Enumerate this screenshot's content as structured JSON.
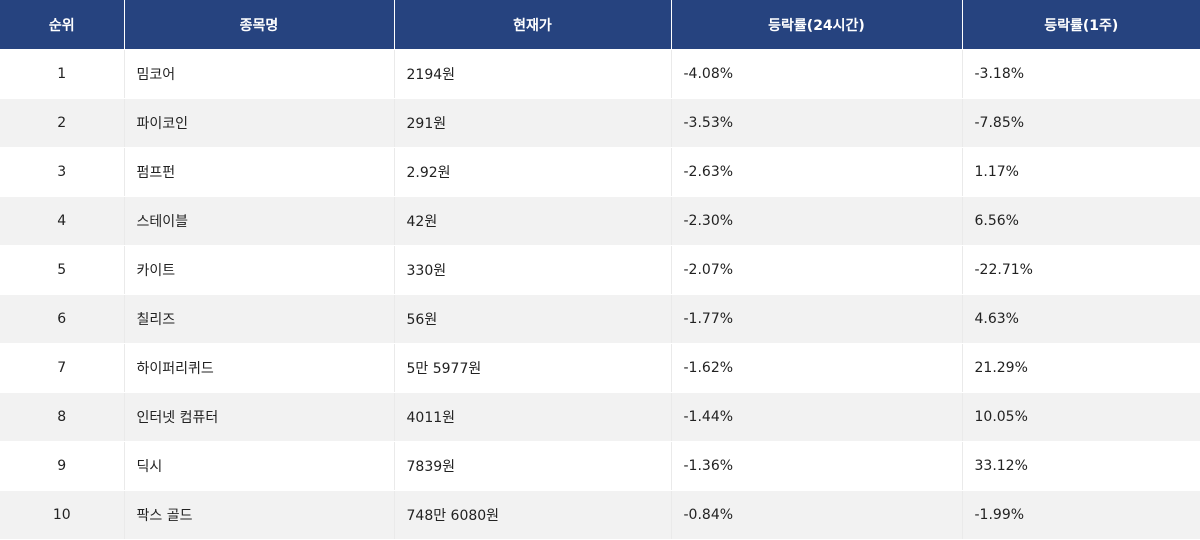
{
  "table": {
    "headers": [
      "순위",
      "종목명",
      "현재가",
      "등락률(24시간)",
      "등락률(1주)"
    ],
    "rows": [
      {
        "rank": "1",
        "name": "밈코어",
        "price": "2194원",
        "change_24h": "-4.08%",
        "change_1w": "-3.18%"
      },
      {
        "rank": "2",
        "name": "파이코인",
        "price": "291원",
        "change_24h": "-3.53%",
        "change_1w": "-7.85%"
      },
      {
        "rank": "3",
        "name": "펌프펀",
        "price": "2.92원",
        "change_24h": "-2.63%",
        "change_1w": "1.17%"
      },
      {
        "rank": "4",
        "name": "스테이블",
        "price": "42원",
        "change_24h": "-2.30%",
        "change_1w": "6.56%"
      },
      {
        "rank": "5",
        "name": "카이트",
        "price": "330원",
        "change_24h": "-2.07%",
        "change_1w": "-22.71%"
      },
      {
        "rank": "6",
        "name": "칠리즈",
        "price": "56원",
        "change_24h": "-1.77%",
        "change_1w": "4.63%"
      },
      {
        "rank": "7",
        "name": "하이퍼리퀴드",
        "price": "5만 5977원",
        "change_24h": "-1.62%",
        "change_1w": "21.29%"
      },
      {
        "rank": "8",
        "name": "인터넷 컴퓨터",
        "price": "4011원",
        "change_24h": "-1.44%",
        "change_1w": "10.05%"
      },
      {
        "rank": "9",
        "name": "딕시",
        "price": "7839원",
        "change_24h": "-1.36%",
        "change_1w": "33.12%"
      },
      {
        "rank": "10",
        "name": "팍스 골드",
        "price": "748만 6080원",
        "change_24h": "-0.84%",
        "change_1w": "-1.99%"
      }
    ]
  },
  "colors": {
    "header_bg": "#26437f",
    "header_text": "#ffffff",
    "row_alt_bg": "#f2f2f2",
    "row_bg": "#ffffff",
    "text": "#222222"
  }
}
